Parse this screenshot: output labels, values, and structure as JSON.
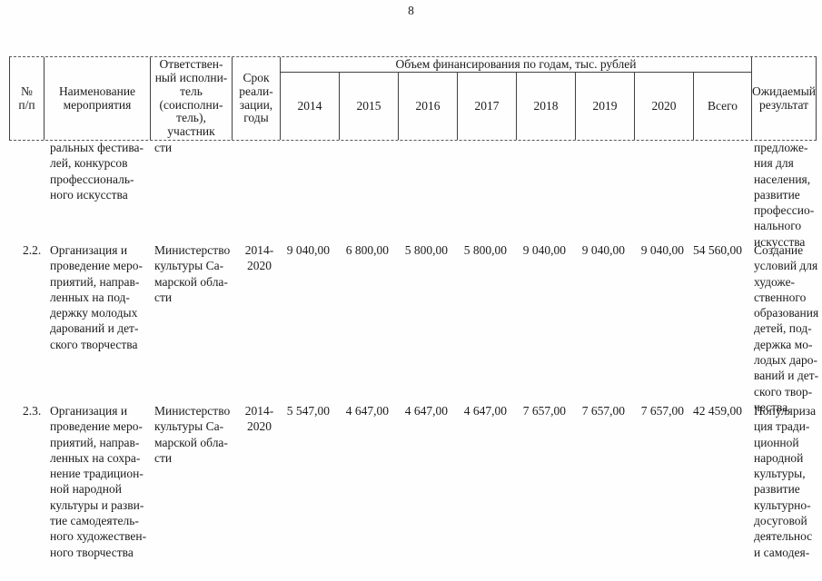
{
  "page": {
    "number": "8"
  },
  "table": {
    "header": {
      "col_no": "№\nп/п",
      "col_name": "Наименование\nмероприятия",
      "col_executor": "Ответствен-\nный исполни-\nтель\n(соисполни-\nтель),\nучастник",
      "col_period": "Срок\nреали-\nзации,\nгоды",
      "finance_group": "Объем финансирования по годам, тыс. рублей",
      "years": [
        "2014",
        "2015",
        "2016",
        "2017",
        "2018",
        "2019",
        "2020"
      ],
      "col_total": "Всего",
      "col_result": "Ожидаемый\nрезультат"
    },
    "rows": [
      {
        "num": "",
        "name": "ральных фестива-\nлей, конкурсов\nпрофессиональ-\nного искусства",
        "executor": "сти",
        "period": "",
        "values": [
          "",
          "",
          "",
          "",
          "",
          "",
          ""
        ],
        "total": "",
        "result": "предложе-\nния для\nнаселения,\nразвитие\nпрофессио-\nнального\nискусства"
      },
      {
        "num": "2.2.",
        "name": "Организация и\nпроведение меро-\nприятий, направ-\nленных на под-\nдержку молодых\nдарований и дет-\nского творчества",
        "executor": "Министерство\nкультуры Са-\nмарской обла-\nсти",
        "period": "2014-\n2020",
        "values": [
          "9 040,00",
          "6 800,00",
          "5 800,00",
          "5 800,00",
          "9 040,00",
          "9 040,00",
          "9 040,00"
        ],
        "total": "54 560,00",
        "result": "Создание\nусловий для\nхудоже-\nственного\nобразования\nдетей, под-\nдержка мо-\nлодых даро-\nваний и дет-\nского твор-\nчества"
      },
      {
        "num": "2.3.",
        "name": "Организация и\nпроведение меро-\nприятий, направ-\nленных на сохра-\nнение традицион-\nной народной\nкультуры и разви-\nтие самодеятель-\nного художествен-\nного творчества",
        "executor": "Министерство\nкультуры Са-\nмарской обла-\nсти",
        "period": "2014-\n2020",
        "values": [
          "5 547,00",
          "4 647,00",
          "4 647,00",
          "4 647,00",
          "7 657,00",
          "7 657,00",
          "7 657,00"
        ],
        "total": "42 459,00",
        "result": "Популяриза\nция тради-\nционной\nнародной\nкультуры,\nразвитие\nкультурно-\nдосуговой\nдеятельнос\nи самодея-"
      }
    ]
  }
}
